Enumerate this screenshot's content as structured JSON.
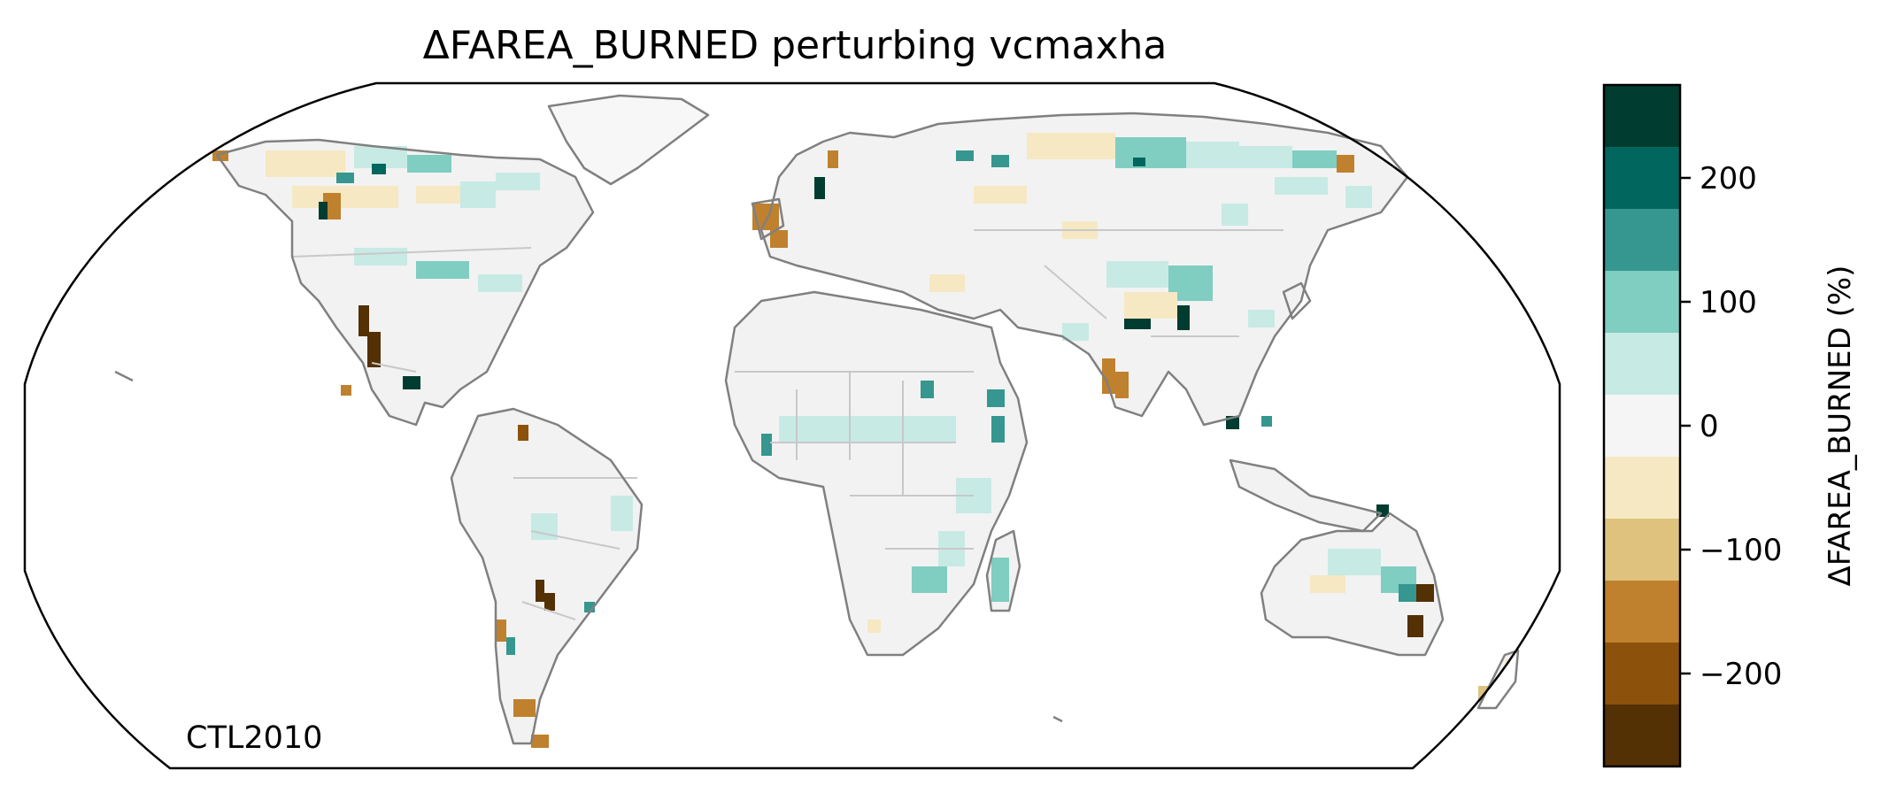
{
  "title": "ΔFAREA_BURNED perturbing vcmaxha",
  "annotation": "CTL2010",
  "colorbar": {
    "label": "ΔFAREA_BURNED (%)",
    "range": [
      -275,
      275
    ],
    "ticks": [
      {
        "value": 200,
        "label": "200"
      },
      {
        "value": 100,
        "label": "100"
      },
      {
        "value": 0,
        "label": "0"
      },
      {
        "value": -100,
        "label": "−100"
      },
      {
        "value": -200,
        "label": "−200"
      }
    ],
    "bins": [
      {
        "min": 225,
        "max": 275,
        "color": "#003c30"
      },
      {
        "min": 175,
        "max": 225,
        "color": "#01665e"
      },
      {
        "min": 125,
        "max": 175,
        "color": "#35978f"
      },
      {
        "min": 75,
        "max": 125,
        "color": "#80cdc1"
      },
      {
        "min": 25,
        "max": 75,
        "color": "#c7eae5"
      },
      {
        "min": -25,
        "max": 25,
        "color": "#f5f5f5"
      },
      {
        "min": -75,
        "max": -25,
        "color": "#f6e8c3"
      },
      {
        "min": -125,
        "max": -75,
        "color": "#dfc27d"
      },
      {
        "min": -175,
        "max": -125,
        "color": "#bf812d"
      },
      {
        "min": -225,
        "max": -175,
        "color": "#8c510a"
      },
      {
        "min": -275,
        "max": -225,
        "color": "#543005"
      }
    ]
  },
  "colors": {
    "coastline": "#808080",
    "borders": "#c8c8c8",
    "neutral_fill": "#f2f2f2"
  }
}
